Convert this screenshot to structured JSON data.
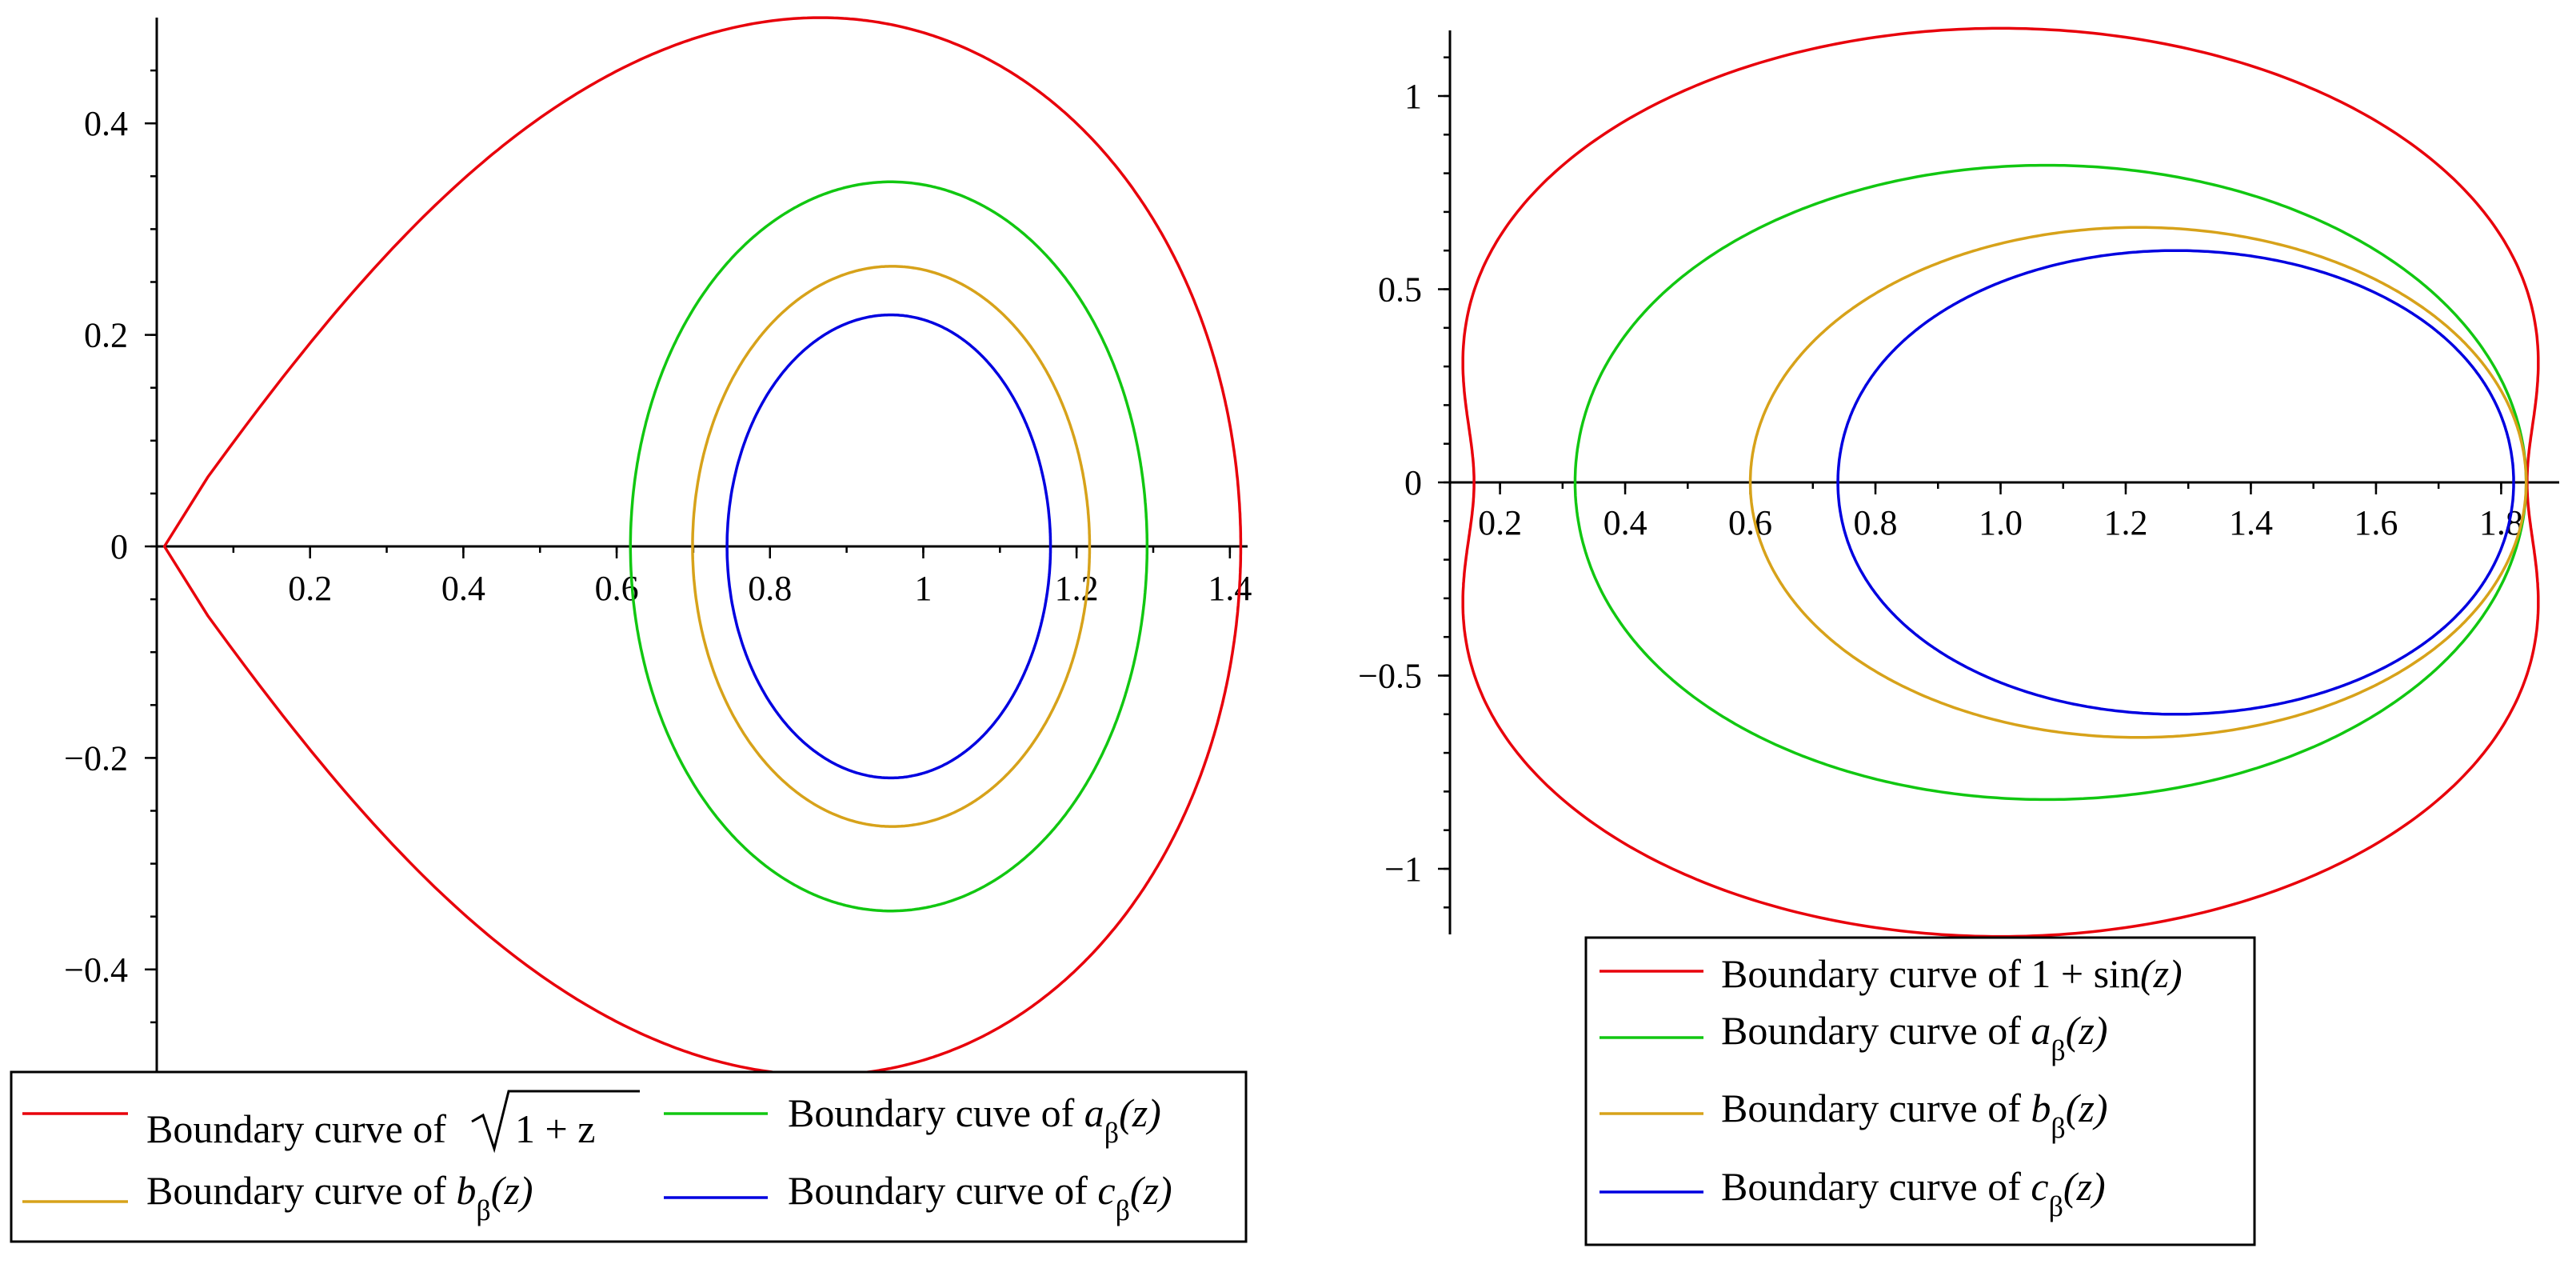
{
  "chart_data": [
    {
      "type": "line",
      "xlim": [
        0,
        1.42
      ],
      "ylim": [
        -0.5,
        0.5
      ],
      "x_ticks": [
        0.2,
        0.4,
        0.6,
        0.8,
        1,
        1.2,
        1.4
      ],
      "x_tick_labels": [
        "0.2",
        "0.4",
        "0.6",
        "0.8",
        "1",
        "1.2",
        "1.4"
      ],
      "y_ticks": [
        0.4,
        0.2,
        0,
        -0.2,
        -0.4
      ],
      "y_tick_labels": [
        "0.4",
        "0.2",
        "0",
        "−0.2",
        "−0.4"
      ],
      "grid": false,
      "legend_position": "bottom",
      "series": [
        {
          "name": "Boundary curve of √(1 + z)",
          "color": "#e8000b",
          "legend": {
            "prefix": "Boundary curve of ",
            "math": "1 + z",
            "radical": true
          }
        },
        {
          "name": "Boundary cuve of aβ(z)",
          "color": "#11c711",
          "legend": {
            "prefix": "Boundary cuve of ",
            "fn": "a",
            "subscript": "β",
            "arg": "(z)"
          }
        },
        {
          "name": "Boundary curve of bβ(z)",
          "color": "#d7a21a",
          "legend": {
            "prefix": "Boundary curve of ",
            "fn": "b",
            "subscript": "β",
            "arg": "(z)"
          }
        },
        {
          "name": "Boundary curve of cβ(z)",
          "color": "#0000e0",
          "legend": {
            "prefix": "Boundary curve of ",
            "fn": "c",
            "subscript": "β",
            "arg": "(z)"
          }
        }
      ]
    },
    {
      "type": "line",
      "xlim": [
        0.12,
        1.88
      ],
      "ylim": [
        -1.17,
        1.17
      ],
      "x_ticks": [
        0.2,
        0.4,
        0.6,
        0.8,
        1.0,
        1.2,
        1.4,
        1.6,
        1.8
      ],
      "x_tick_labels": [
        "0.2",
        "0.4",
        "0.6",
        "0.8",
        "1.0",
        "1.2",
        "1.4",
        "1.6",
        "1.8"
      ],
      "y_ticks": [
        1,
        0.5,
        0,
        -0.5,
        -1
      ],
      "y_tick_labels": [
        "1",
        "0.5",
        "0",
        "−0.5",
        "−1"
      ],
      "grid": false,
      "legend_position": "bottom",
      "series": [
        {
          "name": "Boundary curve of 1 + sin(z)",
          "color": "#e8000b",
          "legend": {
            "prefix": "Boundary curve of ",
            "math": "1 + sin",
            "arg": "(z)"
          }
        },
        {
          "name": "Boundary curve of aβ(z)",
          "color": "#11c711",
          "legend": {
            "prefix": "Boundary curve of ",
            "fn": "a",
            "subscript": "β",
            "arg": "(z)"
          }
        },
        {
          "name": "Boundary curve of bβ(z)",
          "color": "#d7a21a",
          "legend": {
            "prefix": "Boundary curve of ",
            "fn": "b",
            "subscript": "β",
            "arg": "(z)"
          }
        },
        {
          "name": "Boundary curve of cβ(z)",
          "color": "#0000e0",
          "legend": {
            "prefix": "Boundary curve of ",
            "fn": "c",
            "subscript": "β",
            "arg": "(z)"
          }
        }
      ]
    }
  ]
}
